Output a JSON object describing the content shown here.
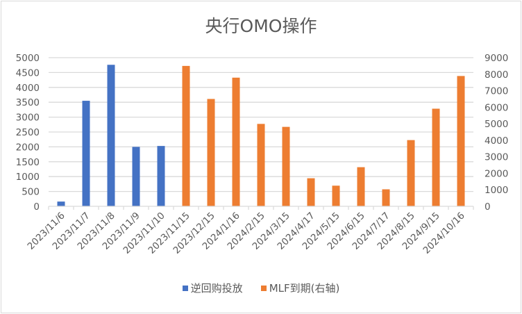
{
  "chart_data": {
    "type": "bar",
    "title": "央行OMO操作",
    "categories": [
      "2023/11/6",
      "2023/11/7",
      "2023/11/8",
      "2023/11/9",
      "2023/11/10",
      "2023/11/15",
      "2023/12/15",
      "2024/1/16",
      "2024/2/15",
      "2024/3/15",
      "2024/4/17",
      "2024/5/15",
      "2024/6/15",
      "2024/7/17",
      "2024/8/15",
      "2024/9/15",
      "2024/10/16"
    ],
    "series": [
      {
        "name": "逆回购投放",
        "axis": "left",
        "color": "#4472c4",
        "values": [
          160,
          3550,
          4760,
          2000,
          2030,
          null,
          null,
          null,
          null,
          null,
          null,
          null,
          null,
          null,
          null,
          null,
          null
        ]
      },
      {
        "name": "MLF到期(右轴)",
        "axis": "right",
        "color": "#ed7d31",
        "values": [
          null,
          null,
          null,
          null,
          null,
          8500,
          6500,
          7790,
          4990,
          4810,
          1700,
          1250,
          2370,
          1030,
          4010,
          5910,
          7890
        ]
      }
    ],
    "y_left": {
      "ylim": [
        0,
        5000
      ],
      "ticks": [
        0,
        500,
        1000,
        1500,
        2000,
        2500,
        3000,
        3500,
        4000,
        4500,
        5000
      ]
    },
    "y_right": {
      "ylim": [
        0,
        9000
      ],
      "ticks": [
        0,
        1000,
        2000,
        3000,
        4000,
        5000,
        6000,
        7000,
        8000,
        9000
      ]
    },
    "xlabel": "",
    "ylabel": "",
    "grid": true,
    "legend_position": "bottom"
  },
  "legend": {
    "items": [
      {
        "label": "逆回购投放",
        "color": "#4472c4"
      },
      {
        "label": "MLF到期(右轴)",
        "color": "#ed7d31"
      }
    ]
  }
}
